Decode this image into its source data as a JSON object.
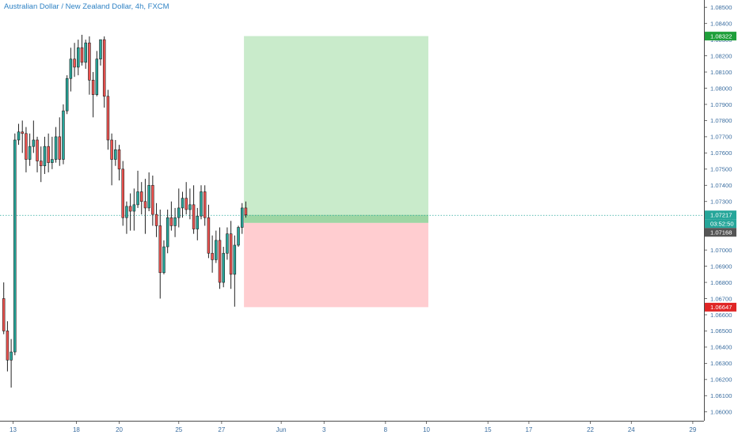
{
  "header": {
    "title": "Australian Dollar / New Zealand Dollar, 4h, FXCM"
  },
  "colors": {
    "up": "#26a69a",
    "down": "#ef5350",
    "wick": "#222222",
    "profit_zone": "#c9ebcb",
    "loss_zone": "#ffcdd0",
    "entry_zone": "#9ed6a4",
    "current_price": "#26a69a",
    "target": "#1e9f3a",
    "stop": "#e02525",
    "countdown": "#26a69a",
    "last_close": "#555555"
  },
  "chart_data": {
    "type": "candlestick",
    "title": "Australian Dollar / New Zealand Dollar, 4h, FXCM",
    "ylim": [
      1.05945,
      1.08545
    ],
    "y_ticks": [
      "1.06000",
      "1.06100",
      "1.06200",
      "1.06300",
      "1.06400",
      "1.06500",
      "1.06600",
      "1.06700",
      "1.06800",
      "1.06900",
      "1.07000",
      "1.07100",
      "1.07200",
      "1.07300",
      "1.07400",
      "1.07500",
      "1.07600",
      "1.07700",
      "1.07800",
      "1.07900",
      "1.08000",
      "1.08100",
      "1.08200",
      "1.08300",
      "1.08400",
      "1.08500"
    ],
    "x_ticks": [
      {
        "label": "13",
        "i": 2.5
      },
      {
        "label": "18",
        "i": 19.5
      },
      {
        "label": "20",
        "i": 31
      },
      {
        "label": "25",
        "i": 47
      },
      {
        "label": "27",
        "i": 58.5
      },
      {
        "label": "Jun",
        "i": 74.5
      },
      {
        "label": "3",
        "i": 86
      },
      {
        "label": "8",
        "i": 102.5
      },
      {
        "label": "10",
        "i": 113.5
      },
      {
        "label": "15",
        "i": 130
      },
      {
        "label": "17",
        "i": 141
      },
      {
        "label": "22",
        "i": 157.5
      },
      {
        "label": "24",
        "i": 168.5
      },
      {
        "label": "29",
        "i": 185
      }
    ],
    "x_range": [
      -1,
      188
    ],
    "candles": [
      [
        1.067,
        1.068,
        1.0648,
        1.065
      ],
      [
        1.065,
        1.0656,
        1.0625,
        1.0632
      ],
      [
        1.0632,
        1.0645,
        1.0615,
        1.0637
      ],
      [
        1.0637,
        1.0772,
        1.0635,
        1.0768
      ],
      [
        1.0768,
        1.0778,
        1.0765,
        1.0773
      ],
      [
        1.0773,
        1.078,
        1.076,
        1.0772
      ],
      [
        1.0772,
        1.0776,
        1.0748,
        1.0756
      ],
      [
        1.0756,
        1.0772,
        1.0752,
        1.0764
      ],
      [
        1.0764,
        1.078,
        1.076,
        1.0768
      ],
      [
        1.0768,
        1.077,
        1.0748,
        1.0755
      ],
      [
        1.0755,
        1.0764,
        1.0742,
        1.0752
      ],
      [
        1.0752,
        1.077,
        1.0747,
        1.0764
      ],
      [
        1.0764,
        1.0772,
        1.0748,
        1.0754
      ],
      [
        1.0754,
        1.077,
        1.075,
        1.0756
      ],
      [
        1.0756,
        1.0776,
        1.0754,
        1.077
      ],
      [
        1.077,
        1.0782,
        1.0752,
        1.0756
      ],
      [
        1.0756,
        1.079,
        1.0753,
        1.0786
      ],
      [
        1.0786,
        1.0808,
        1.0784,
        1.0806
      ],
      [
        1.0806,
        1.0825,
        1.0798,
        1.0818
      ],
      [
        1.0818,
        1.0828,
        1.0807,
        1.0813
      ],
      [
        1.0813,
        1.083,
        1.0808,
        1.0825
      ],
      [
        1.0825,
        1.0833,
        1.0814,
        1.0816
      ],
      [
        1.0816,
        1.083,
        1.0812,
        1.0828
      ],
      [
        1.0828,
        1.0832,
        1.0796,
        1.0805
      ],
      [
        1.0805,
        1.081,
        1.0782,
        1.0796
      ],
      [
        1.0796,
        1.0823,
        1.0795,
        1.0818
      ],
      [
        1.0818,
        1.083,
        1.0814,
        1.083
      ],
      [
        1.083,
        1.0832,
        1.0788,
        1.0795
      ],
      [
        1.0795,
        1.0799,
        1.0762,
        1.0768
      ],
      [
        1.0768,
        1.0772,
        1.074,
        1.0756
      ],
      [
        1.0756,
        1.0768,
        1.0752,
        1.0762
      ],
      [
        1.0762,
        1.0765,
        1.0743,
        1.075
      ],
      [
        1.075,
        1.0755,
        1.0715,
        1.072
      ],
      [
        1.072,
        1.073,
        1.071,
        1.0727
      ],
      [
        1.0727,
        1.0735,
        1.0712,
        1.0724
      ],
      [
        1.0724,
        1.0738,
        1.0712,
        1.0728
      ],
      [
        1.0728,
        1.0749,
        1.0726,
        1.0736
      ],
      [
        1.0736,
        1.0742,
        1.0722,
        1.073
      ],
      [
        1.073,
        1.0744,
        1.071,
        1.0726
      ],
      [
        1.0726,
        1.0748,
        1.0724,
        1.074
      ],
      [
        1.074,
        1.0746,
        1.0715,
        1.0722
      ],
      [
        1.0722,
        1.0729,
        1.0708,
        1.0715
      ],
      [
        1.0715,
        1.0725,
        1.067,
        1.0686
      ],
      [
        1.0686,
        1.0706,
        1.0685,
        1.0702
      ],
      [
        1.0702,
        1.0725,
        1.0698,
        1.072
      ],
      [
        1.072,
        1.073,
        1.0712,
        1.0715
      ],
      [
        1.0715,
        1.0726,
        1.0708,
        1.072
      ],
      [
        1.072,
        1.0738,
        1.0714,
        1.0726
      ],
      [
        1.0726,
        1.0736,
        1.072,
        1.0732
      ],
      [
        1.0732,
        1.0742,
        1.0722,
        1.0725
      ],
      [
        1.0725,
        1.0738,
        1.0719,
        1.0728
      ],
      [
        1.0728,
        1.074,
        1.071,
        1.0713
      ],
      [
        1.0713,
        1.0726,
        1.0706,
        1.0721
      ],
      [
        1.0721,
        1.074,
        1.0719,
        1.0736
      ],
      [
        1.0736,
        1.074,
        1.0715,
        1.072
      ],
      [
        1.072,
        1.0728,
        1.0695,
        1.0698
      ],
      [
        1.0698,
        1.0709,
        1.0686,
        1.0694
      ],
      [
        1.0694,
        1.0712,
        1.0692,
        1.0706
      ],
      [
        1.0706,
        1.0714,
        1.0676,
        1.068
      ],
      [
        1.068,
        1.0702,
        1.0677,
        1.0698
      ],
      [
        1.0698,
        1.0714,
        1.0694,
        1.071
      ],
      [
        1.071,
        1.0718,
        1.0676,
        1.0685
      ],
      [
        1.0685,
        1.0709,
        1.0665,
        1.0703
      ],
      [
        1.0703,
        1.0715,
        1.0702,
        1.0714
      ],
      [
        1.0714,
        1.0729,
        1.071,
        1.0726
      ],
      [
        1.0726,
        1.073,
        1.072,
        1.07217
      ]
    ]
  },
  "axis": {
    "price_flags": {
      "target": "1.08322",
      "current": "1.07217",
      "countdown": "03:52:50",
      "last_close": "1.07168",
      "stop": "1.06647"
    }
  },
  "position": {
    "entry": 1.07168,
    "target": 1.08322,
    "stop": 1.06647,
    "current": 1.07217,
    "start_i": 65,
    "end_i": 114
  }
}
